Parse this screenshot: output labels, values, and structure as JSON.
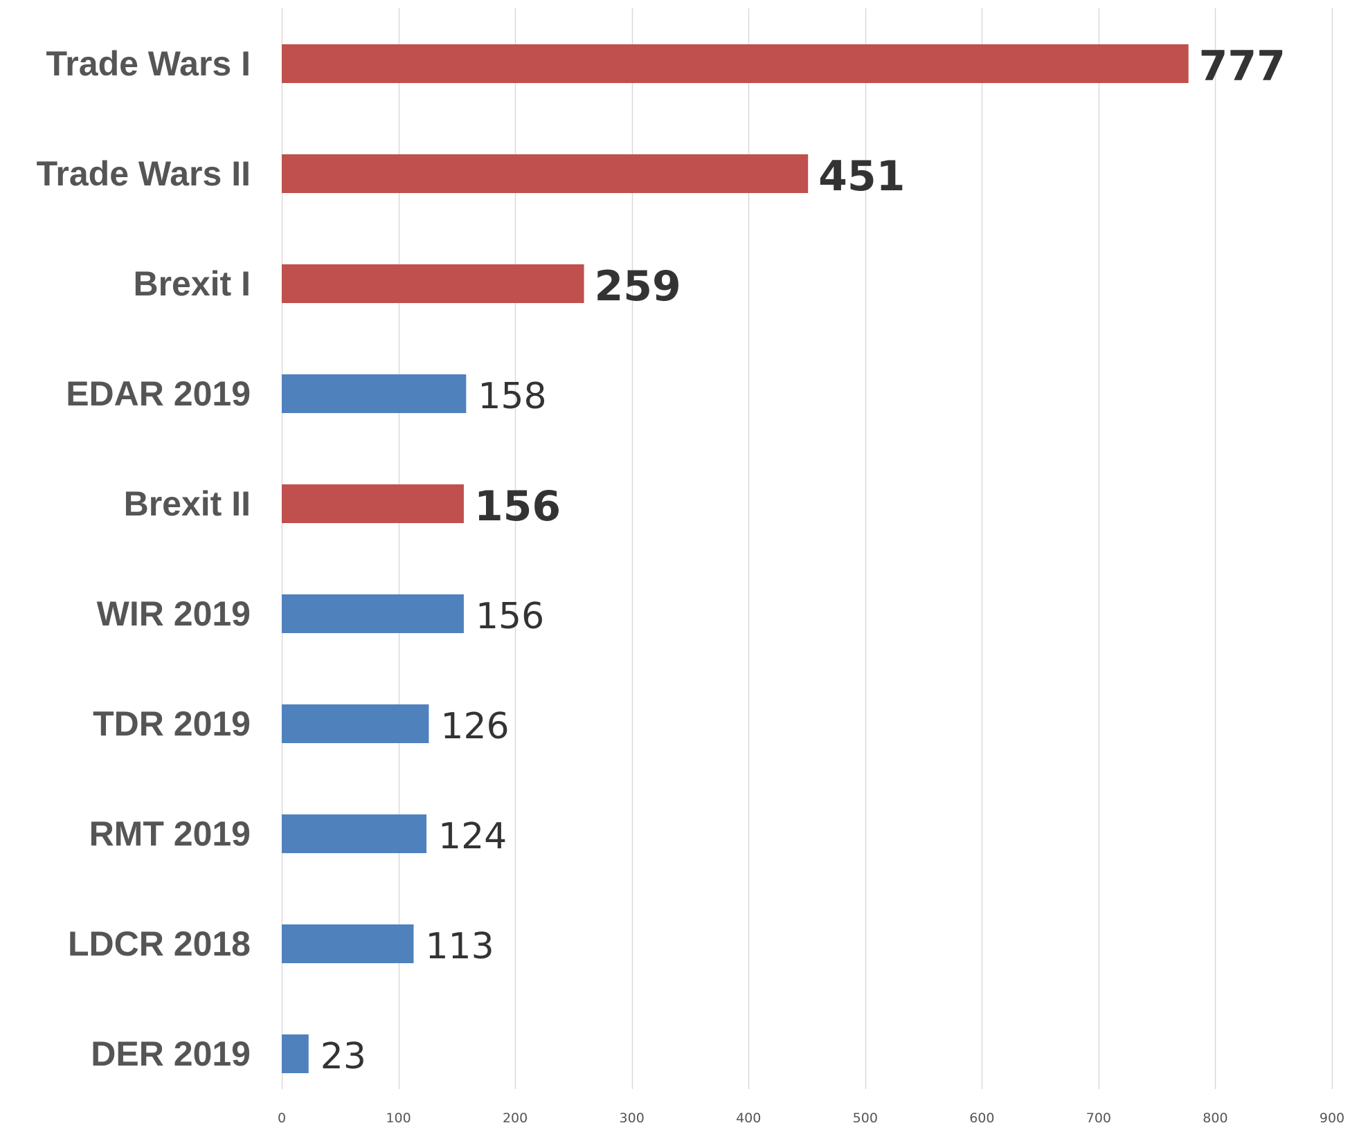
{
  "chart_data": {
    "type": "bar",
    "orientation": "horizontal",
    "categories": [
      "Trade Wars I",
      "Trade Wars II",
      "Brexit I",
      "EDAR 2019",
      "Brexit II",
      "WIR 2019",
      "TDR 2019",
      "RMT 2019",
      "LDCR 2018",
      "DER 2019"
    ],
    "values": [
      777,
      451,
      259,
      158,
      156,
      156,
      126,
      124,
      113,
      23
    ],
    "highlighted": [
      true,
      true,
      true,
      false,
      true,
      false,
      false,
      false,
      false,
      false
    ],
    "colors": {
      "highlight": "#c0504d",
      "normal": "#4f81bd",
      "grid": "#d9d9d9",
      "category_text": "#555555",
      "value_text": "#333333"
    },
    "xlim": [
      0,
      900
    ],
    "xticks": [
      0,
      100,
      200,
      300,
      400,
      500,
      600,
      700,
      800,
      900
    ],
    "grid": true,
    "legend": "none",
    "title": "",
    "xlabel": "",
    "ylabel": ""
  }
}
